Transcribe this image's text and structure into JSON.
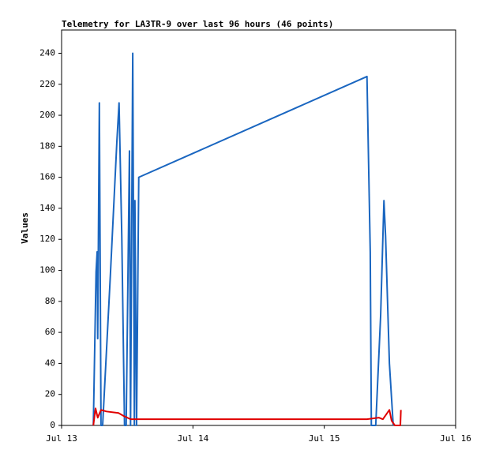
{
  "chart_data": {
    "type": "line",
    "title": "Telemetry for LA3TR-9 over last 96 hours (46 points)",
    "y_label": "Values",
    "xlim": [
      0,
      72
    ],
    "xticks": [
      {
        "value": 0,
        "label": "Jul 13"
      },
      {
        "value": 24,
        "label": "Jul 14"
      },
      {
        "value": 48,
        "label": "Jul 15"
      },
      {
        "value": 72,
        "label": "Jul 16"
      }
    ],
    "ylim": [
      0,
      255
    ],
    "yticks": [
      0,
      20,
      40,
      60,
      80,
      100,
      120,
      140,
      160,
      180,
      200,
      220,
      240
    ],
    "grid": false,
    "series": [
      {
        "name": "blue",
        "color": "#1a66c0",
        "x": [
          5.8,
          6.3,
          6.5,
          6.6,
          6.9,
          7.2,
          7.5,
          8.9,
          10.1,
          10.5,
          11.0,
          11.5,
          11.8,
          12.4,
          12.6,
          13.0,
          13.3,
          13.4,
          13.7,
          14.1,
          55.8,
          56.4,
          56.6,
          57.4,
          58.3,
          58.9,
          59.2,
          59.9,
          60.6
        ],
        "values": [
          0,
          99,
          112,
          56,
          208,
          0,
          0,
          96,
          183,
          208,
          122,
          0,
          0,
          177,
          0,
          240,
          0,
          145,
          0,
          160,
          225,
          112,
          0,
          0,
          71,
          145,
          122,
          40,
          0
        ]
      },
      {
        "name": "red",
        "color": "#e00000",
        "x": [
          5.8,
          6.2,
          6.6,
          7.2,
          8.2,
          10.4,
          11.4,
          12.6,
          14.1,
          55.8,
          58.0,
          58.7,
          59.9,
          60.3,
          60.9,
          61.9,
          62.0
        ],
        "values": [
          0,
          11,
          5,
          10,
          9,
          8,
          6,
          4,
          4,
          4,
          5,
          4,
          10,
          3,
          0,
          0,
          10
        ]
      }
    ]
  }
}
